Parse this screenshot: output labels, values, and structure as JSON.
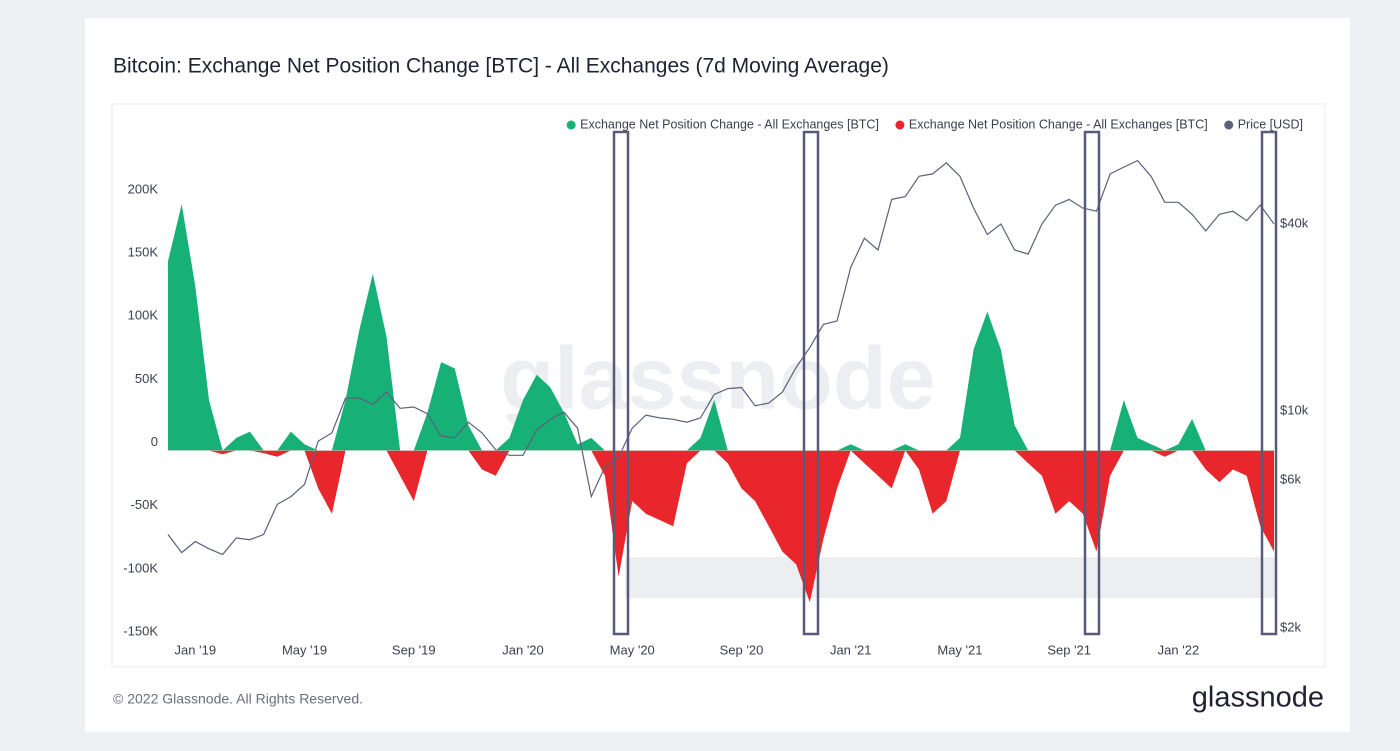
{
  "chart_data": {
    "type": "area",
    "title": "Bitcoin: Exchange Net Position Change [BTC] - All Exchanges (7d Moving Average)",
    "watermark": "glassnode",
    "legend": "top-right",
    "categories": [
      null,
      null,
      "Jan '19",
      null,
      null,
      null,
      null,
      null,
      null,
      null,
      "May '19",
      null,
      null,
      null,
      null,
      null,
      null,
      null,
      "Sep '19",
      null,
      null,
      null,
      null,
      null,
      null,
      null,
      "Jan '20",
      null,
      null,
      null,
      null,
      null,
      null,
      null,
      "May '20",
      null,
      null,
      null,
      null,
      null,
      null,
      null,
      "Sep '20",
      null,
      null,
      null,
      null,
      null,
      null,
      null,
      "Jan '21",
      null,
      null,
      null,
      null,
      null,
      null,
      null,
      "May '21",
      null,
      null,
      null,
      null,
      null,
      null,
      null,
      "Sep '21",
      null,
      null,
      null,
      null,
      null,
      null,
      null,
      "Jan '22",
      null,
      null,
      null,
      null,
      null,
      null,
      null
    ],
    "series": [
      {
        "name": "Exchange Net Position Change - All Exchanges [BTC]",
        "color": "#17b077",
        "values": [
          150000,
          195000,
          130000,
          40000,
          0,
          10000,
          15000,
          0,
          0,
          15000,
          5000,
          0,
          0,
          40000,
          95000,
          140000,
          90000,
          0,
          0,
          30000,
          70000,
          65000,
          20000,
          0,
          0,
          10000,
          40000,
          60000,
          50000,
          30000,
          5000,
          10000,
          0,
          0,
          0,
          0,
          0,
          0,
          0,
          10000,
          40000,
          0,
          0,
          0,
          0,
          0,
          0,
          0,
          0,
          0,
          5000,
          0,
          0,
          0,
          5000,
          0,
          0,
          0,
          10000,
          80000,
          110000,
          80000,
          20000,
          0,
          0,
          0,
          0,
          0,
          0,
          0,
          40000,
          10000,
          5000,
          0,
          5000,
          25000,
          0,
          0,
          0,
          0,
          0,
          0
        ]
      },
      {
        "name": "Exchange Net Position Change - All Exchanges [BTC]",
        "color": "#e8262b",
        "values": [
          0,
          0,
          0,
          0,
          -3000,
          0,
          0,
          -2000,
          -5000,
          0,
          0,
          -30000,
          -50000,
          0,
          0,
          0,
          0,
          -20000,
          -40000,
          0,
          0,
          0,
          0,
          -15000,
          -20000,
          0,
          0,
          0,
          0,
          0,
          0,
          0,
          -20000,
          -100000,
          -40000,
          -50000,
          -55000,
          -60000,
          -10000,
          0,
          0,
          -10000,
          -30000,
          -40000,
          -60000,
          -80000,
          -90000,
          -120000,
          -70000,
          -30000,
          0,
          -10000,
          -20000,
          -30000,
          0,
          -15000,
          -50000,
          -40000,
          0,
          0,
          0,
          0,
          0,
          -10000,
          -20000,
          -50000,
          -40000,
          -50000,
          -80000,
          -20000,
          0,
          0,
          0,
          -5000,
          0,
          0,
          -15000,
          -25000,
          -15000,
          -20000,
          -60000,
          -80000
        ]
      },
      {
        "name": "Price [USD]",
        "color": "#5c6079",
        "axis": "y2",
        "values": [
          4000,
          3500,
          3800,
          3600,
          3450,
          3900,
          3850,
          4000,
          5000,
          5300,
          5800,
          8000,
          8500,
          11000,
          11000,
          10500,
          11500,
          10200,
          10300,
          9800,
          8300,
          8200,
          9200,
          8500,
          7500,
          7200,
          7200,
          8700,
          9400,
          9900,
          8800,
          5300,
          6600,
          7100,
          8800,
          9700,
          9500,
          9400,
          9200,
          9500,
          11300,
          11800,
          11900,
          10400,
          10600,
          11500,
          13800,
          16000,
          19000,
          19500,
          29000,
          36000,
          33000,
          48000,
          49000,
          57000,
          58000,
          63000,
          57000,
          45000,
          37000,
          40000,
          33000,
          32000,
          40000,
          46000,
          48000,
          45000,
          44000,
          58000,
          61000,
          64000,
          57000,
          47000,
          47000,
          43000,
          38000,
          43000,
          44000,
          41000,
          46000,
          40000
        ]
      }
    ],
    "ylim": [
      -150000,
      230000
    ],
    "yticks": [
      {
        "value": -150000,
        "label": "-150K"
      },
      {
        "value": -100000,
        "label": "-100K"
      },
      {
        "value": -50000,
        "label": "-50K"
      },
      0,
      {
        "value": 50000,
        "label": "50K"
      },
      {
        "value": 100000,
        "label": "100K"
      },
      {
        "value": 150000,
        "label": "150K"
      },
      {
        "value": 200000,
        "label": "200K"
      }
    ],
    "y2lim": [
      1830,
      64300
    ],
    "y2scale": "log",
    "y2ticks": [
      {
        "value": 2000,
        "label": "$2k"
      },
      {
        "value": 6000,
        "label": "$6k"
      },
      {
        "value": 10000,
        "label": "$10k"
      },
      {
        "value": 40000,
        "label": "$40k"
      }
    ],
    "grid": false
  },
  "footer": {
    "copyright": "© 2022 Glassnode. All Rights Reserved.",
    "logo": "glassnode"
  }
}
